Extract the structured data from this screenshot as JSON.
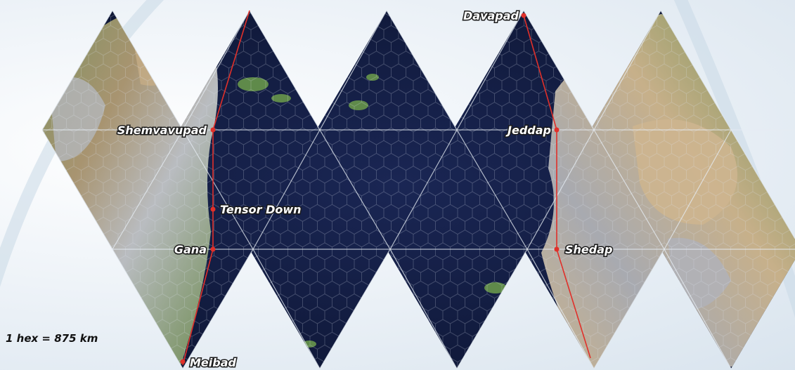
{
  "scale": {
    "label": "1 hex = 875 km"
  },
  "cities": [
    {
      "name": "Davapad"
    },
    {
      "name": "Shemvavupad"
    },
    {
      "name": "Jeddap"
    },
    {
      "name": "Tensor Down"
    },
    {
      "name": "Gana"
    },
    {
      "name": "Shedap"
    },
    {
      "name": "Meibad"
    }
  ],
  "colors": {
    "ocean": "#101a3a",
    "land_green": "#5f8a4a",
    "land_tan": "#b7a07a",
    "mountain": "#a9acb2",
    "route": "#e0302a",
    "grid_line": "#dfe6f0"
  },
  "icons": [
    "city-marker-icon"
  ]
}
